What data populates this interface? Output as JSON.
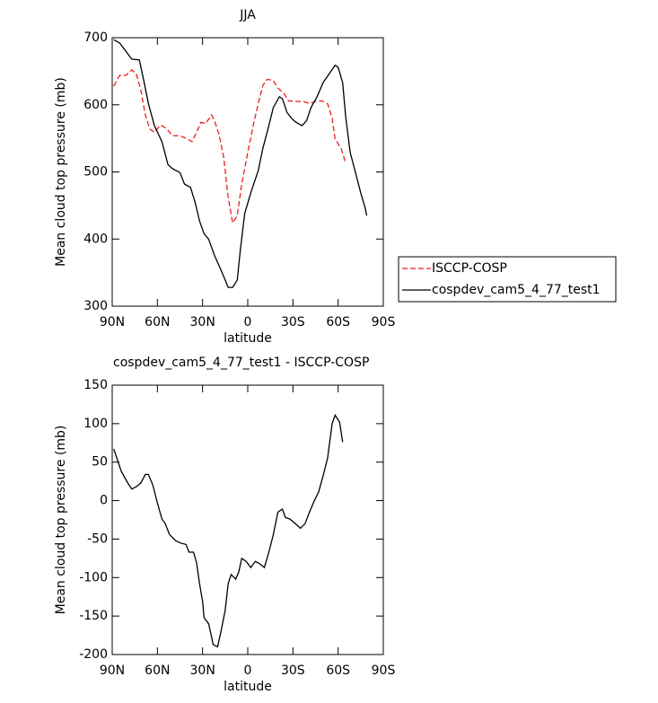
{
  "chart_data": [
    {
      "type": "line",
      "title": "JJA",
      "x_label": "latitude",
      "y_label": "Mean cloud top pressure (mb)",
      "xlim": [
        90,
        -90
      ],
      "xticks": [
        {
          "value": 90,
          "label": "90N"
        },
        {
          "value": 60,
          "label": "60N"
        },
        {
          "value": 30,
          "label": "30N"
        },
        0,
        {
          "value": -30,
          "label": "30S"
        },
        {
          "value": -60,
          "label": "60S"
        },
        {
          "value": -90,
          "label": "90S"
        }
      ],
      "ylim": [
        300,
        700
      ],
      "yticks": [
        300,
        400,
        500,
        600,
        700
      ],
      "legend": "outside-right",
      "series": [
        {
          "name": "ISCCP-COSP",
          "color": "#e8201f",
          "line_style": "dashed",
          "x": [
            89,
            85,
            81,
            77,
            74,
            71,
            68,
            65,
            62,
            58,
            54,
            50,
            45,
            41,
            37,
            33,
            31,
            28,
            24,
            22,
            19,
            16,
            13,
            10,
            7,
            4,
            0,
            -4,
            -7,
            -10,
            -13,
            -17,
            -20,
            -24,
            -27,
            -32,
            -37,
            -41,
            -45,
            -49,
            -53,
            -56,
            -58,
            -62,
            -65
          ],
          "values": [
            628,
            644,
            644,
            652,
            646,
            622,
            585,
            564,
            559,
            570,
            565,
            554,
            554,
            550,
            545,
            564,
            574,
            572,
            585,
            576,
            555,
            522,
            462,
            424,
            435,
            482,
            529,
            573,
            602,
            629,
            638,
            636,
            625,
            617,
            606,
            605,
            605,
            602,
            605,
            606,
            602,
            580,
            549,
            535,
            513
          ]
        },
        {
          "name": "cospdev_cam5_4_77_test1",
          "color": "#000000",
          "line_style": "solid",
          "x": [
            89,
            85,
            81,
            77,
            72,
            69,
            66,
            62,
            57,
            53,
            50,
            45,
            42,
            38,
            35,
            32,
            29,
            26,
            22,
            18,
            15,
            13,
            10,
            7,
            5,
            2,
            -2,
            -7,
            -10,
            -14,
            -17,
            -21,
            -23,
            -26,
            -29,
            -32,
            -36,
            -39,
            -42,
            -46,
            -50,
            -54,
            -58,
            -60,
            -63,
            -65,
            -68,
            -72,
            -75,
            -78,
            -79
          ],
          "values": [
            697,
            692,
            680,
            668,
            667,
            636,
            602,
            569,
            545,
            511,
            505,
            499,
            482,
            477,
            455,
            427,
            408,
            400,
            375,
            355,
            339,
            328,
            328,
            339,
            382,
            438,
            469,
            502,
            535,
            569,
            596,
            612,
            609,
            589,
            580,
            574,
            569,
            576,
            596,
            612,
            633,
            646,
            659,
            656,
            633,
            582,
            529,
            495,
            469,
            446,
            435
          ]
        }
      ]
    },
    {
      "type": "line",
      "title": "cospdev_cam5_4_77_test1 - ISCCP-COSP",
      "x_label": "latitude",
      "y_label": "Mean cloud top pressure (mb)",
      "xlim": [
        90,
        -90
      ],
      "xticks": [
        {
          "value": 90,
          "label": "90N"
        },
        {
          "value": 60,
          "label": "60N"
        },
        {
          "value": 30,
          "label": "30N"
        },
        0,
        {
          "value": -30,
          "label": "30S"
        },
        {
          "value": -60,
          "label": "60S"
        },
        {
          "value": -90,
          "label": "90S"
        }
      ],
      "ylim": [
        -200,
        150
      ],
      "yticks": [
        -200,
        -150,
        -100,
        -50,
        0,
        50,
        100,
        150
      ],
      "series": [
        {
          "color": "#000000",
          "line_style": "solid",
          "x": [
            89,
            84,
            80,
            77,
            74,
            71,
            68,
            66,
            63,
            60,
            57,
            55,
            52,
            48,
            45,
            41,
            39,
            36,
            34,
            32,
            30,
            29,
            26,
            24,
            23,
            20,
            18,
            15,
            13,
            11,
            8,
            6,
            4,
            1,
            -2,
            -5,
            -8,
            -11,
            -14,
            -17,
            -20,
            -23,
            -25,
            -28,
            -31,
            -35,
            -38,
            -41,
            -44,
            -47,
            -50,
            -53,
            -56,
            -58,
            -61,
            -63
          ],
          "values": [
            67,
            38,
            24,
            15,
            18,
            23,
            34,
            34,
            20,
            -3,
            -24,
            -29,
            -44,
            -52,
            -55,
            -57,
            -67,
            -67,
            -81,
            -108,
            -131,
            -152,
            -160,
            -177,
            -187,
            -190,
            -172,
            -143,
            -108,
            -96,
            -102,
            -93,
            -75,
            -79,
            -87,
            -79,
            -82,
            -87,
            -67,
            -44,
            -15,
            -11,
            -22,
            -24,
            -29,
            -36,
            -30,
            -15,
            -1,
            11,
            32,
            55,
            100,
            111,
            102,
            76
          ]
        }
      ]
    }
  ]
}
